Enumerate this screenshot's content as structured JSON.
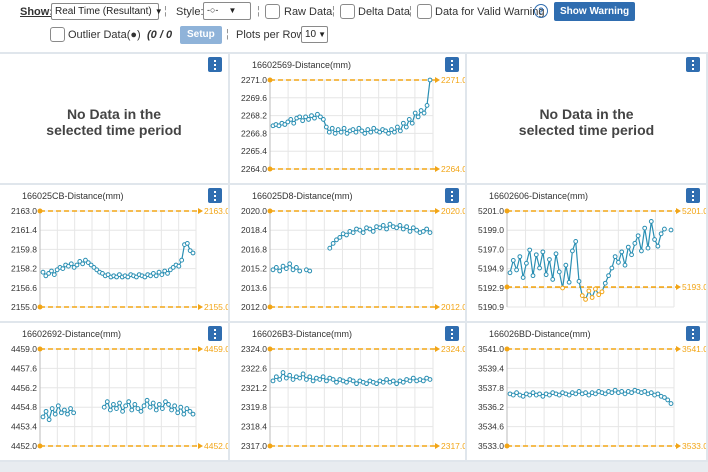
{
  "toolbar": {
    "show_label": "Show:",
    "show_value": "Real Time (Resultant)",
    "style_label": "Style:",
    "style_value": "-○-",
    "raw_data_label": "Raw Data",
    "delta_data_label": "Delta Data",
    "valid_warning_label": "Data for Valid Warning",
    "help_glyph": "?",
    "show_warning_label": "Show Warning",
    "outlier_label": "Outlier Data(●)",
    "outlier_count": "(0 / 0",
    "outlier_count_close": ")",
    "setup_label": "Setup",
    "plots_per_row_label": "Plots per Row:",
    "plots_per_row_value": "10",
    "separator": "¦"
  },
  "no_data_text": [
    "No Data in the",
    "selected time period"
  ],
  "colors": {
    "series": "#2a8fb3",
    "limit": "#f2a516",
    "menu": "#2f6db0",
    "grid": "#e6e6e6"
  },
  "chart_data": [
    {
      "type": "nodata"
    },
    {
      "type": "line",
      "title": "16602569-Distance(mm)",
      "yticks": [
        "2271.0",
        "2269.6",
        "2268.2",
        "2266.8",
        "2265.4",
        "2264.0"
      ],
      "ylim": [
        2264.0,
        2271.0
      ],
      "limits": {
        "upper": 2271.0,
        "lower": 2264.0,
        "upper_label": "2271.0",
        "lower_label": "2264.0"
      },
      "segments": [
        [
          2267.4,
          2267.5,
          2267.4,
          2267.6,
          2267.5,
          2267.7,
          2267.9,
          2267.6,
          2268.0,
          2268.1,
          2267.8,
          2268.1,
          2267.9,
          2268.2,
          2268.0,
          2268.3,
          2268.1,
          2267.9,
          2267.3,
          2266.9,
          2267.2,
          2266.8,
          2267.1,
          2266.9,
          2267.2,
          2266.8,
          2267.0,
          2267.1,
          2266.9,
          2267.2,
          2267.0,
          2266.8,
          2267.1,
          2266.9,
          2267.2,
          2267.0,
          2266.9,
          2267.1,
          2267.0,
          2266.8,
          2267.1,
          2266.9,
          2267.3,
          2267.0,
          2267.6,
          2267.3,
          2267.9,
          2267.6,
          2268.4,
          2268.1,
          2268.6,
          2268.4,
          2269.0,
          2271.0
        ]
      ]
    },
    {
      "type": "nodata"
    },
    {
      "type": "line",
      "title": "166025CB-Distance(mm)",
      "yticks": [
        "2163.0",
        "2161.4",
        "2159.8",
        "2158.2",
        "2156.6",
        "2155.0"
      ],
      "ylim": [
        2155.0,
        2163.0
      ],
      "limits": {
        "upper": 2163.0,
        "lower": 2155.0,
        "upper_label": "2163.0",
        "lower_label": "2155.0"
      },
      "segments": [
        [
          2157.9,
          2157.6,
          2157.8,
          2158.0,
          2157.7,
          2158.1,
          2158.3,
          2158.2,
          2158.5,
          2158.4,
          2158.6,
          2158.3,
          2158.5,
          2158.8,
          2158.6,
          2158.9,
          2158.7,
          2158.5,
          2158.3,
          2158.1,
          2157.9,
          2157.8,
          2157.6,
          2157.7,
          2157.5,
          2157.6,
          2157.5,
          2157.7,
          2157.5,
          2157.6,
          2157.5,
          2157.7,
          2157.6,
          2157.5,
          2157.7,
          2157.6,
          2157.5,
          2157.7,
          2157.6,
          2157.8,
          2157.6,
          2157.9,
          2157.7,
          2158.0,
          2157.8,
          2158.1,
          2158.3,
          2158.5,
          2158.4,
          2158.9,
          2160.2,
          2160.3,
          2159.7,
          2159.5
        ]
      ]
    },
    {
      "type": "line",
      "title": "166025D8-Distance(mm)",
      "yticks": [
        "2020.0",
        "2018.4",
        "2016.8",
        "2015.2",
        "2013.6",
        "2012.0"
      ],
      "ylim": [
        2012.0,
        2020.0
      ],
      "limits": {
        "upper": 2020.0,
        "lower": 2012.0,
        "upper_label": "2020.0",
        "lower_label": "2012.0"
      },
      "segments": [
        [
          2015.1,
          2015.3,
          2015.0,
          2015.4,
          2015.2,
          2015.6,
          2015.1,
          2015.3,
          2015.0,
          null,
          2015.1,
          2015.0
        ],
        [
          null,
          null,
          null,
          null,
          null,
          null,
          null,
          null,
          null,
          null,
          null,
          null,
          null,
          null,
          null,
          null,
          null,
          2016.9,
          2017.3,
          2017.6,
          2017.8,
          2018.1,
          2018.0,
          2018.3,
          2018.2,
          2018.5,
          2018.4,
          2018.2,
          2018.6,
          2018.5,
          2018.3,
          2018.7,
          2018.6,
          2018.8,
          2018.5,
          2018.9,
          2018.7,
          2018.6,
          2018.8,
          2018.5,
          2018.7,
          2018.3,
          2018.6,
          2018.4,
          2018.2,
          2018.3,
          2018.5,
          2018.2
        ]
      ]
    },
    {
      "type": "line",
      "title": "16602606-Distance(mm)",
      "yticks": [
        "5201.0",
        "5199.0",
        "5197.0",
        "5194.9",
        "5192.9",
        "5190.9"
      ],
      "ylim": [
        5190.9,
        5201.0
      ],
      "limits": {
        "upper": 5201.0,
        "lower": 5193.0,
        "upper_label": "5201.0",
        "lower_label": "5193.0"
      },
      "segments": [
        [
          5194.5,
          5195.8,
          5194.8,
          5196.2,
          5194.0,
          5195.5,
          5196.9,
          5194.2,
          5196.4,
          5195.0,
          5196.7,
          5194.3,
          5195.9,
          5193.8,
          5196.5,
          5194.6,
          5192.9,
          5195.3,
          5193.5,
          5196.8,
          5197.8,
          5193.6,
          5192.1,
          5191.7,
          5192.6,
          5191.9,
          5192.8,
          5192.2,
          5192.5,
          5193.4,
          5194.2,
          5195.0,
          5196.2,
          5195.6,
          5196.7,
          5195.3,
          5197.2,
          5196.4,
          5197.6,
          5198.4,
          5196.8,
          5199.2,
          5197.1,
          5199.9,
          5198.0,
          5197.3,
          5198.6,
          5199.1,
          null,
          5199.0
        ]
      ]
    },
    {
      "type": "line",
      "title": "16602692-Distance(mm)",
      "yticks": [
        "4459.0",
        "4457.6",
        "4456.2",
        "4454.8",
        "4453.4",
        "4452.0"
      ],
      "ylim": [
        4452.0,
        4459.0
      ],
      "limits": {
        "upper": 4459.0,
        "lower": 4452.0,
        "upper_label": "4459.0",
        "lower_label": "4452.0"
      },
      "segments": [
        [
          4454.1,
          4454.5,
          4453.9,
          4454.7,
          4454.3,
          4454.9,
          4454.4,
          4454.6,
          4454.3,
          4454.7,
          4454.4
        ],
        [
          null,
          null,
          null,
          null,
          null,
          null,
          null,
          null,
          null,
          null,
          null,
          null,
          null,
          null,
          null,
          null,
          null,
          null,
          null,
          null,
          4454.8,
          4455.2,
          4454.6,
          4455.0,
          4454.7,
          4455.1,
          4454.5,
          4454.9,
          4455.2,
          4454.6,
          4455.0,
          4454.7,
          4454.5,
          4454.9,
          4455.3,
          4454.8,
          4455.1,
          4454.6,
          4455.0,
          4454.7,
          4455.2,
          4455.0,
          4454.6,
          4454.9,
          4454.4,
          4454.8,
          4454.3,
          4454.7,
          4454.5,
          4454.3
        ]
      ]
    },
    {
      "type": "line",
      "title": "166026B3-Distance(mm)",
      "yticks": [
        "2324.0",
        "2322.6",
        "2321.2",
        "2319.8",
        "2318.4",
        "2317.0"
      ],
      "ylim": [
        2317.0,
        2324.0
      ],
      "limits": {
        "upper": 2324.0,
        "lower": 2317.0,
        "upper_label": "2324.0",
        "lower_label": "2317.0"
      },
      "segments": [
        [
          2321.7,
          2322.0,
          2321.8,
          2322.3,
          2321.9,
          2322.1,
          2321.8,
          2322.0,
          2321.9,
          2322.2,
          2321.8,
          2322.0,
          2321.7,
          2321.9,
          2321.8,
          2322.0,
          2321.7,
          2321.9,
          2321.8,
          2321.6,
          2321.8,
          2321.7,
          2321.6,
          2321.8,
          2321.7,
          2321.5,
          2321.7,
          2321.6,
          2321.5,
          2321.7,
          2321.6,
          2321.5,
          2321.7,
          2321.6,
          2321.8,
          2321.6,
          2321.7,
          2321.5,
          2321.7,
          2321.6,
          2321.8,
          2321.7,
          2321.9,
          2321.7,
          2321.8,
          2321.7,
          2321.9,
          2321.8
        ]
      ]
    },
    {
      "type": "line",
      "title": "166026BD-Distance(mm)",
      "yticks": [
        "3541.0",
        "3539.4",
        "3537.8",
        "3536.2",
        "3534.6",
        "3533.0"
      ],
      "ylim": [
        3533.0,
        3541.0
      ],
      "limits": {
        "upper": 3541.0,
        "lower": 3533.0,
        "upper_label": "3541.0",
        "lower_label": "3533.0"
      },
      "segments": [
        [
          3537.3,
          3537.2,
          3537.4,
          3537.2,
          3537.1,
          3537.3,
          3537.2,
          3537.4,
          3537.2,
          3537.3,
          3537.1,
          3537.3,
          3537.2,
          3537.4,
          3537.3,
          3537.2,
          3537.4,
          3537.3,
          3537.2,
          3537.4,
          3537.3,
          3537.5,
          3537.3,
          3537.4,
          3537.2,
          3537.4,
          3537.3,
          3537.5,
          3537.4,
          3537.3,
          3537.5,
          3537.4,
          3537.6,
          3537.4,
          3537.5,
          3537.3,
          3537.5,
          3537.4,
          3537.6,
          3537.5,
          3537.4,
          3537.5,
          3537.3,
          3537.4,
          3537.2,
          3537.3,
          3537.1,
          3537.0,
          3536.8,
          3536.5
        ]
      ]
    }
  ]
}
